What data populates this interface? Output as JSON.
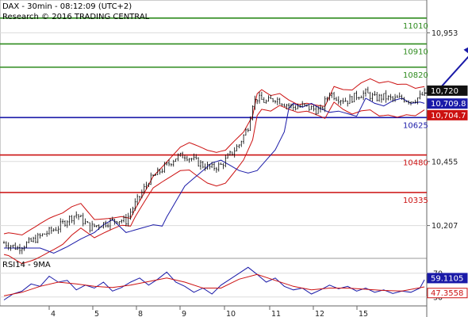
{
  "header": {
    "title": "DAX - 30min - 08:12:09 (UTC+2)",
    "source": "Research © 2016 TRADING CENTRAL"
  },
  "chart_data": [
    {
      "type": "candlestick",
      "name": "price-panel",
      "y_ticks": [
        "10,953",
        "10,455",
        "10,207"
      ],
      "y_tick_values": [
        10953,
        10455,
        10207
      ],
      "ylim": [
        10080,
        11080
      ],
      "x_tick_labels": [
        "4",
        "5",
        "8",
        "9",
        "10",
        "11",
        "12",
        "15"
      ],
      "levels": [
        {
          "label": "11010",
          "value": 11010,
          "color": "#2e8b1e"
        },
        {
          "label": "10910",
          "value": 10910,
          "color": "#2e8b1e"
        },
        {
          "label": "10820",
          "value": 10820,
          "color": "#2e8b1e"
        },
        {
          "label": "10625",
          "value": 10625,
          "color": "#1a1aa8"
        },
        {
          "label": "10480",
          "value": 10480,
          "color": "#cc1111"
        },
        {
          "label": "10335",
          "value": 10335,
          "color": "#cc1111"
        }
      ],
      "price_badges": [
        {
          "label": "10,720",
          "value": 10720,
          "bg": "#111111",
          "fg": "#ffffff"
        },
        {
          "label": "10,709.8",
          "value": 10709.8,
          "bg": "#1a1aa8",
          "fg": "#ffffff"
        },
        {
          "label": "10,704.7",
          "value": 10704.7,
          "bg": "#cc1111",
          "fg": "#ffffff"
        }
      ],
      "close_series": [
        {
          "x": 0,
          "y": 10140
        },
        {
          "x": 3,
          "y": 10120
        },
        {
          "x": 6,
          "y": 10145
        },
        {
          "x": 9,
          "y": 10175
        },
        {
          "x": 12,
          "y": 10200
        },
        {
          "x": 14,
          "y": 10230
        },
        {
          "x": 16,
          "y": 10250
        },
        {
          "x": 19,
          "y": 10200
        },
        {
          "x": 22,
          "y": 10215
        },
        {
          "x": 25,
          "y": 10230
        },
        {
          "x": 27,
          "y": 10225
        },
        {
          "x": 28,
          "y": 10260
        },
        {
          "x": 30,
          "y": 10320
        },
        {
          "x": 32,
          "y": 10380
        },
        {
          "x": 34,
          "y": 10410
        },
        {
          "x": 36,
          "y": 10440
        },
        {
          "x": 38,
          "y": 10470
        },
        {
          "x": 40,
          "y": 10480
        },
        {
          "x": 42,
          "y": 10460
        },
        {
          "x": 44,
          "y": 10440
        },
        {
          "x": 46,
          "y": 10430
        },
        {
          "x": 48,
          "y": 10440
        },
        {
          "x": 50,
          "y": 10480
        },
        {
          "x": 52,
          "y": 10520
        },
        {
          "x": 54,
          "y": 10590
        },
        {
          "x": 55,
          "y": 10680
        },
        {
          "x": 56,
          "y": 10700
        },
        {
          "x": 58,
          "y": 10685
        },
        {
          "x": 60,
          "y": 10700
        },
        {
          "x": 62,
          "y": 10680
        },
        {
          "x": 64,
          "y": 10665
        },
        {
          "x": 66,
          "y": 10670
        },
        {
          "x": 68,
          "y": 10660
        },
        {
          "x": 70,
          "y": 10650
        },
        {
          "x": 72,
          "y": 10720
        },
        {
          "x": 74,
          "y": 10700
        },
        {
          "x": 76,
          "y": 10690
        },
        {
          "x": 78,
          "y": 10710
        },
        {
          "x": 80,
          "y": 10720
        },
        {
          "x": 82,
          "y": 10700
        },
        {
          "x": 84,
          "y": 10705
        },
        {
          "x": 86,
          "y": 10695
        },
        {
          "x": 88,
          "y": 10700
        },
        {
          "x": 90,
          "y": 10690
        },
        {
          "x": 92,
          "y": 10705
        },
        {
          "x": 93,
          "y": 10720
        }
      ],
      "forecast_arrow": {
        "from_x": 96,
        "from_y": 10730,
        "to_x": 104,
        "to_y": 10910
      }
    },
    {
      "type": "line",
      "name": "rsi-panel",
      "title": "RSI14 - 9MA",
      "y_ticks": [
        "70",
        "30"
      ],
      "y_tick_values": [
        70,
        30
      ],
      "ylim": [
        15,
        95
      ],
      "badges": [
        {
          "label": "59.1105",
          "value": 59.1105,
          "bg": "#1a1aa8",
          "fg": "#ffffff"
        },
        {
          "label": "47.3558",
          "value": 47.3558,
          "bg": "#ffffff",
          "fg": "#cc1111"
        }
      ],
      "series": [
        {
          "name": "RSI14",
          "color": "#1a1aa8",
          "values": [
            {
              "x": 0,
              "y": 25
            },
            {
              "x": 2,
              "y": 35
            },
            {
              "x": 4,
              "y": 40
            },
            {
              "x": 6,
              "y": 52
            },
            {
              "x": 8,
              "y": 48
            },
            {
              "x": 10,
              "y": 65
            },
            {
              "x": 12,
              "y": 55
            },
            {
              "x": 14,
              "y": 58
            },
            {
              "x": 16,
              "y": 42
            },
            {
              "x": 18,
              "y": 50
            },
            {
              "x": 20,
              "y": 45
            },
            {
              "x": 22,
              "y": 55
            },
            {
              "x": 24,
              "y": 40
            },
            {
              "x": 26,
              "y": 46
            },
            {
              "x": 28,
              "y": 55
            },
            {
              "x": 30,
              "y": 62
            },
            {
              "x": 32,
              "y": 50
            },
            {
              "x": 34,
              "y": 60
            },
            {
              "x": 36,
              "y": 72
            },
            {
              "x": 38,
              "y": 55
            },
            {
              "x": 40,
              "y": 48
            },
            {
              "x": 42,
              "y": 38
            },
            {
              "x": 44,
              "y": 45
            },
            {
              "x": 46,
              "y": 35
            },
            {
              "x": 48,
              "y": 50
            },
            {
              "x": 50,
              "y": 60
            },
            {
              "x": 52,
              "y": 70
            },
            {
              "x": 54,
              "y": 80
            },
            {
              "x": 56,
              "y": 68
            },
            {
              "x": 58,
              "y": 55
            },
            {
              "x": 60,
              "y": 62
            },
            {
              "x": 62,
              "y": 48
            },
            {
              "x": 64,
              "y": 42
            },
            {
              "x": 66,
              "y": 45
            },
            {
              "x": 68,
              "y": 35
            },
            {
              "x": 70,
              "y": 42
            },
            {
              "x": 72,
              "y": 50
            },
            {
              "x": 74,
              "y": 44
            },
            {
              "x": 76,
              "y": 48
            },
            {
              "x": 78,
              "y": 40
            },
            {
              "x": 80,
              "y": 45
            },
            {
              "x": 82,
              "y": 38
            },
            {
              "x": 84,
              "y": 42
            },
            {
              "x": 86,
              "y": 36
            },
            {
              "x": 88,
              "y": 40
            },
            {
              "x": 90,
              "y": 38
            },
            {
              "x": 92,
              "y": 45
            },
            {
              "x": 93,
              "y": 59
            }
          ]
        },
        {
          "name": "9MA",
          "color": "#cc1111",
          "values": [
            {
              "x": 0,
              "y": 32
            },
            {
              "x": 4,
              "y": 38
            },
            {
              "x": 8,
              "y": 48
            },
            {
              "x": 12,
              "y": 55
            },
            {
              "x": 16,
              "y": 52
            },
            {
              "x": 20,
              "y": 48
            },
            {
              "x": 24,
              "y": 46
            },
            {
              "x": 28,
              "y": 50
            },
            {
              "x": 32,
              "y": 56
            },
            {
              "x": 36,
              "y": 62
            },
            {
              "x": 40,
              "y": 55
            },
            {
              "x": 44,
              "y": 45
            },
            {
              "x": 48,
              "y": 45
            },
            {
              "x": 52,
              "y": 60
            },
            {
              "x": 56,
              "y": 68
            },
            {
              "x": 60,
              "y": 58
            },
            {
              "x": 64,
              "y": 48
            },
            {
              "x": 68,
              "y": 42
            },
            {
              "x": 72,
              "y": 45
            },
            {
              "x": 76,
              "y": 45
            },
            {
              "x": 80,
              "y": 43
            },
            {
              "x": 84,
              "y": 41
            },
            {
              "x": 88,
              "y": 40
            },
            {
              "x": 93,
              "y": 47
            }
          ]
        }
      ]
    }
  ]
}
